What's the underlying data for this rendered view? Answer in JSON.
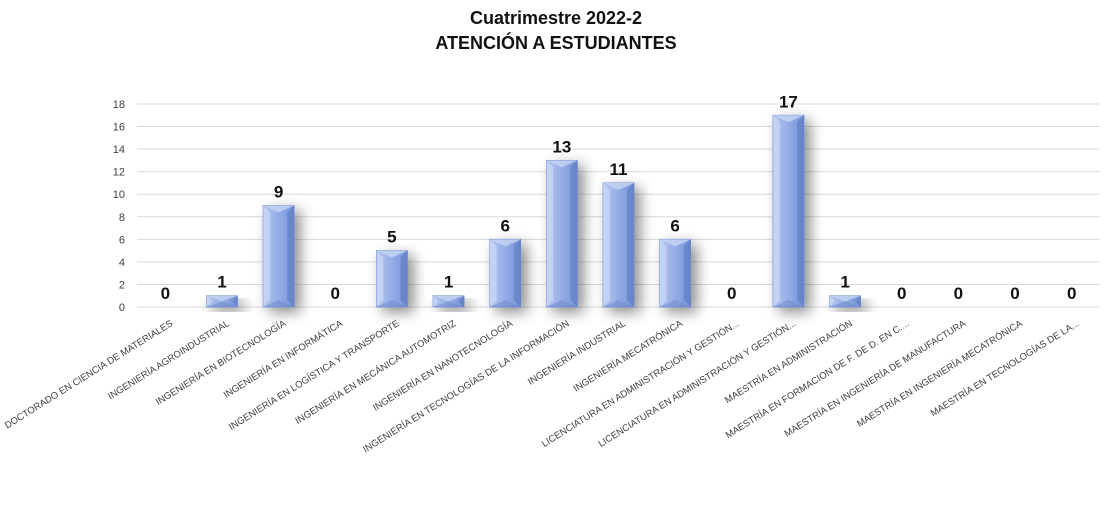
{
  "chart_data": {
    "type": "bar",
    "title": "Cuatrimestre 2022-2",
    "subtitle": "ATENCIÓN A ESTUDIANTES",
    "categories": [
      "DOCTORADO EN CIENCIA DE MATERIALES",
      "INGENIERÍA AGROINDUSTRIAL",
      "INGENIERÍA EN BIOTECNOLOGÍA",
      "INGENIERÍA EN INFORMÁTICA",
      "INGENIERÍA EN LOGÍSTICA Y TRANSPORTE",
      "INGENIERÍA EN MECÁNICA AUTOMOTRIZ",
      "INGENIERÍA EN NANOTECNOLOGÍA",
      "INGENIERÍA EN TECNOLOGÍAS DE LA INFORMACIÓN",
      "INGENIERÍA INDUSTRIAL",
      "INGENIERÍA MECATRÓNICA",
      "LICENCIATURA EN ADMINISTRACIÓN Y GESTIÓN...",
      "LICENCIATURA EN ADMINISTRACIÓN Y GESTIÓN...",
      "MAESTRÍA EN ADMINISTRACIÓN",
      "MAESTRÍA EN FORMACION DE F. DE D. EN C....",
      "MAESTRÍA EN INGENIERÍA DE MANUFACTURA",
      "MAESTRÍA EN INGENIERÍA MECATRÓNICA",
      "MAESTRÍA EN TECNOLOGÍAS DE LA..."
    ],
    "values": [
      0,
      1,
      9,
      0,
      5,
      1,
      6,
      13,
      11,
      6,
      0,
      17,
      1,
      0,
      0,
      0,
      0
    ],
    "data_labels": [
      "0",
      "1",
      "9",
      "0",
      "5",
      "1",
      "6",
      "13",
      "11",
      "6",
      "0",
      "17",
      "1",
      "0",
      "0",
      "0",
      "0"
    ],
    "ylim": [
      0,
      18
    ],
    "yticks": [
      "0",
      "2",
      "4",
      "6",
      "8",
      "10",
      "12",
      "14",
      "16",
      "18"
    ],
    "grid": true,
    "legend": "none",
    "colors": {
      "bar_light": "#c3d3f2",
      "bar_main": "#8eaae4",
      "bar_dark": "#5a78c0",
      "grid": "#d9d9d9",
      "text": "#111111",
      "axis_text": "#404040"
    }
  }
}
